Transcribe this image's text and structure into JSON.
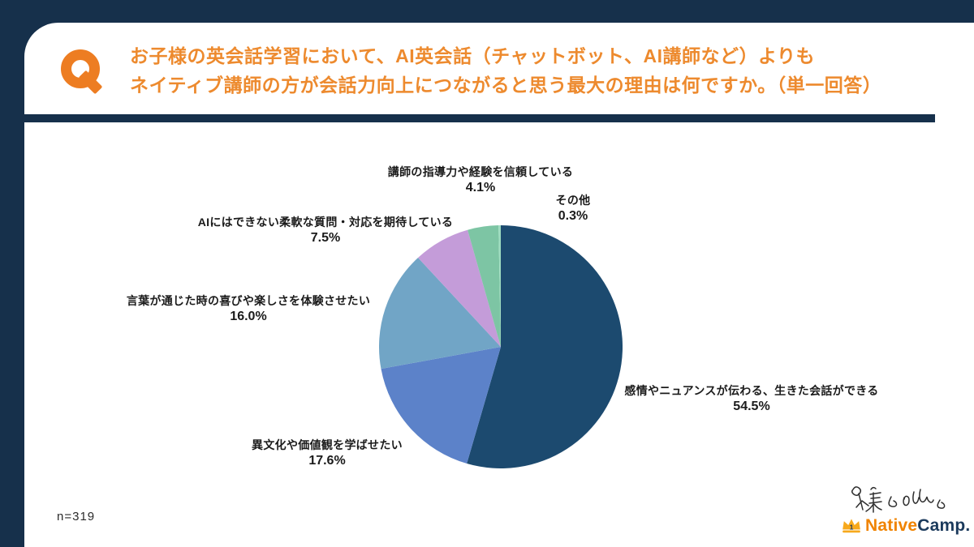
{
  "page": {
    "background_color": "#16304B",
    "card_background": "#FFFFFF"
  },
  "header": {
    "q_mark": "Q",
    "accent_color": "#ED8A2E",
    "title_lines": [
      "お子様の英会話学習において、AI英会話（チャットボット、AI講師など）よりも",
      "ネイティブ講師の方が会話力向上につながると思う最大の理由は何ですか。（単一回答）"
    ]
  },
  "chart_data": {
    "type": "pie",
    "title": "",
    "direction": "clockwise",
    "start_angle": "12-o-clock",
    "value_suffix": "%",
    "slices": [
      {
        "label": "感情やニュアンスが伝わる、生きた会話ができる",
        "value": 54.5,
        "color": "#1C4A6F"
      },
      {
        "label": "異文化や価値観を学ばせたい",
        "value": 17.6,
        "color": "#5C82C9"
      },
      {
        "label": "言葉が通じた時の喜びや楽しさを体験させたい",
        "value": 16.0,
        "color": "#71A5C6"
      },
      {
        "label": "AIにはできない柔軟な質問・対応を期待している",
        "value": 7.5,
        "color": "#C49CD9"
      },
      {
        "label": "講師の指導力や経験を信頼している",
        "value": 4.1,
        "color": "#7DC5A4"
      },
      {
        "label": "その他",
        "value": 0.3,
        "color": "#9EDCC0"
      }
    ],
    "sample_size": "n=319"
  },
  "footer": {
    "sample_size": "n=319",
    "brand": {
      "name_left": "Native",
      "name_right": "Camp.",
      "left_color": "#F08300",
      "right_color": "#1B3A5C",
      "crown_color": "#F7A91C"
    }
  }
}
